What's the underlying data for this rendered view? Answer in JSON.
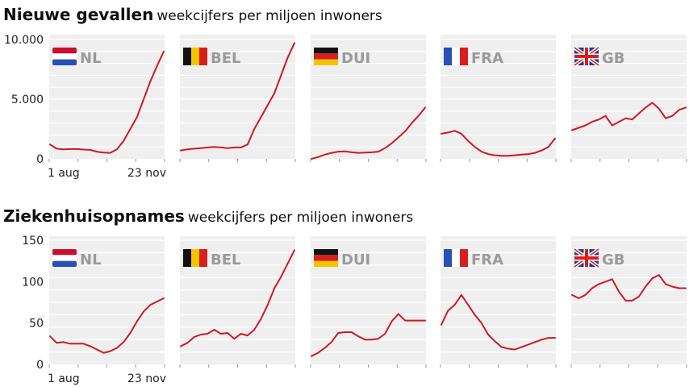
{
  "sections": [
    {
      "title": "Nieuwe gevallen",
      "subtitle": "weekcijfers per miljoen inwoners",
      "y_ticks": [
        {
          "value": 10000,
          "label": "10.000"
        },
        {
          "value": 5000,
          "label": "5.000"
        },
        {
          "value": 0,
          "label": "0"
        }
      ]
    },
    {
      "title": "Ziekenhuisopnames",
      "subtitle": "weekcijfers per miljoen inwoners",
      "y_ticks": [
        {
          "value": 150,
          "label": "150"
        },
        {
          "value": 100,
          "label": "100"
        },
        {
          "value": 50,
          "label": "50"
        },
        {
          "value": 0,
          "label": "0"
        }
      ]
    }
  ],
  "x_tick_labels": [
    "1 aug",
    "23 nov"
  ],
  "colors": {
    "line": "#cc1a22",
    "panel_bg": "#efefef",
    "gridline": "#ffffff",
    "label_grey": "#9a9a9a"
  },
  "countries": [
    {
      "code": "NL",
      "flag": "netherlands-flag"
    },
    {
      "code": "BEL",
      "flag": "belgium-flag"
    },
    {
      "code": "DUI",
      "flag": "germany-flag"
    },
    {
      "code": "FRA",
      "flag": "france-flag"
    },
    {
      "code": "GB",
      "flag": "united-kingdom-flag"
    }
  ],
  "chart_data": [
    {
      "type": "line",
      "title": "Nieuwe gevallen",
      "subtitle": "weekcijfers per miljoen inwoners",
      "x": [
        "1 aug",
        "",
        "",
        "",
        "",
        "",
        "",
        "",
        "",
        "",
        "",
        "",
        "",
        "",
        "",
        "",
        "23 nov",
        ""
      ],
      "x_tick_labels": [
        "1 aug",
        "23 nov"
      ],
      "ylim": [
        0,
        10000
      ],
      "grid": true,
      "series": [
        {
          "name": "NL",
          "values": [
            1200,
            850,
            800,
            820,
            820,
            780,
            750,
            600,
            520,
            500,
            800,
            1500,
            2500,
            3500,
            5000,
            6500,
            7800,
            9000
          ]
        },
        {
          "name": "BEL",
          "values": [
            700,
            800,
            850,
            900,
            950,
            1000,
            950,
            900,
            950,
            950,
            1200,
            2500,
            3500,
            4500,
            5500,
            7000,
            8500,
            9700
          ]
        },
        {
          "name": "DUI",
          "values": [
            0,
            150,
            350,
            500,
            600,
            620,
            550,
            500,
            520,
            550,
            600,
            900,
            1300,
            1800,
            2300,
            3000,
            3600,
            4300
          ]
        },
        {
          "name": "FRA",
          "values": [
            2100,
            2200,
            2350,
            2100,
            1500,
            1000,
            600,
            400,
            300,
            250,
            250,
            300,
            350,
            400,
            500,
            700,
            1000,
            1700
          ]
        },
        {
          "name": "GB",
          "values": [
            2400,
            2600,
            2800,
            3100,
            3300,
            3600,
            2800,
            3100,
            3400,
            3300,
            3800,
            4300,
            4700,
            4200,
            3400,
            3600,
            4100,
            4300
          ]
        }
      ]
    },
    {
      "type": "line",
      "title": "Ziekenhuisopnames",
      "subtitle": "weekcijfers per miljoen inwoners",
      "x": [
        "1 aug",
        "",
        "",
        "",
        "",
        "",
        "",
        "",
        "",
        "",
        "",
        "",
        "",
        "",
        "",
        "",
        "23 nov",
        ""
      ],
      "x_tick_labels": [
        "1 aug",
        "23 nov"
      ],
      "ylim": [
        0,
        150
      ],
      "grid": true,
      "series": [
        {
          "name": "NL",
          "values": [
            34,
            26,
            27,
            25,
            25,
            25,
            22,
            18,
            14,
            16,
            20,
            27,
            38,
            52,
            64,
            72,
            76,
            80
          ]
        },
        {
          "name": "BEL",
          "values": [
            22,
            26,
            33,
            36,
            37,
            42,
            37,
            38,
            31,
            37,
            35,
            42,
            55,
            72,
            92,
            106,
            122,
            138
          ]
        },
        {
          "name": "DUI",
          "values": [
            10,
            14,
            20,
            27,
            38,
            39,
            39,
            34,
            30,
            30,
            31,
            37,
            52,
            61,
            53,
            53,
            53,
            53
          ]
        },
        {
          "name": "FRA",
          "values": [
            48,
            65,
            72,
            84,
            72,
            60,
            50,
            36,
            28,
            21,
            19,
            18,
            21,
            24,
            27,
            30,
            32,
            32
          ]
        },
        {
          "name": "GB",
          "values": [
            84,
            80,
            84,
            92,
            97,
            100,
            103,
            88,
            77,
            77,
            82,
            94,
            104,
            108,
            97,
            94,
            92,
            92
          ]
        }
      ]
    }
  ]
}
